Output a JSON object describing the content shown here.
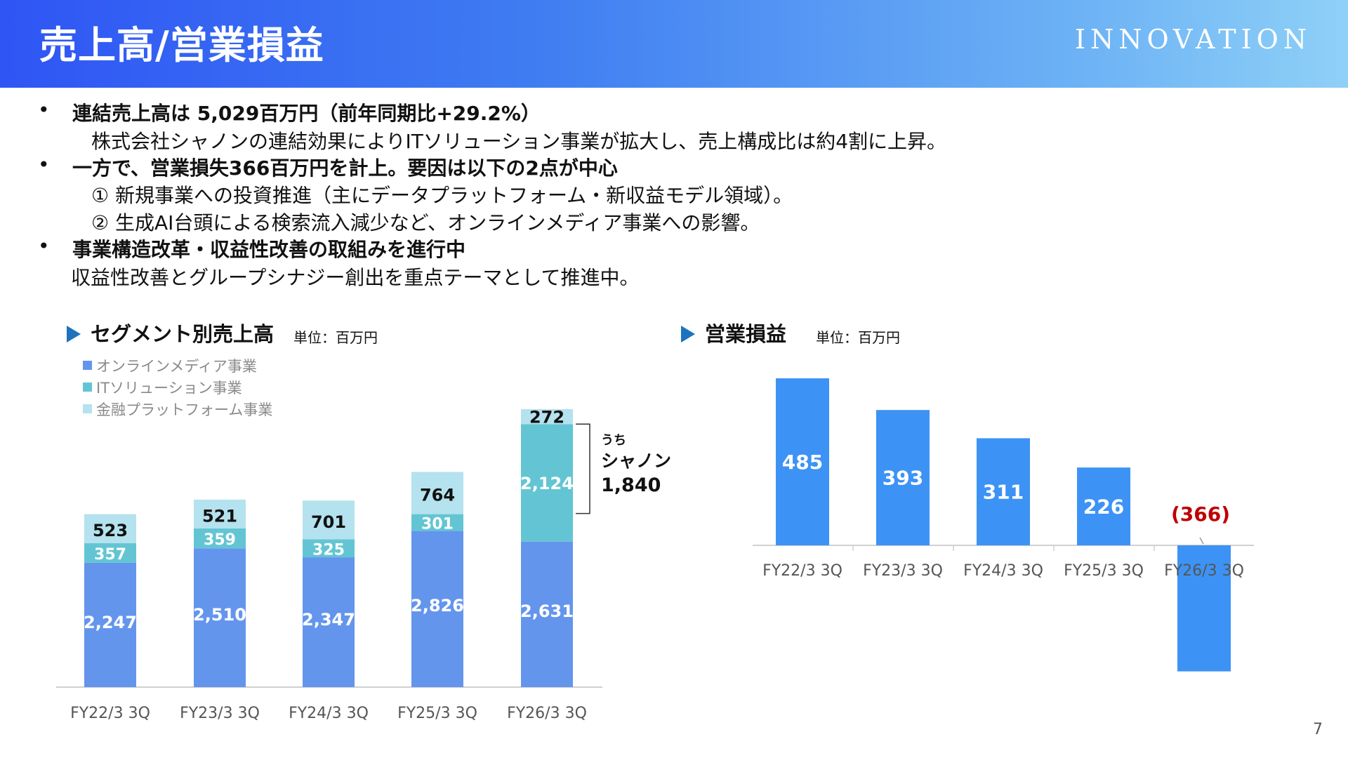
{
  "header": {
    "title": "売上高/営業損益",
    "logo": "INNOVATION"
  },
  "bullets": [
    {
      "text": "連結売上高は 5,029百万円（前年同期比+29.2%）",
      "bold": true,
      "bullet": true
    },
    {
      "text": "株式会社シャノンの連結効果によりITソリューション事業が拡大し、売上構成比は約4割に上昇。",
      "bold": false,
      "bullet": false,
      "indent": 1
    },
    {
      "text": "一方で、営業損失366百万円を計上。要因は以下の2点が中心",
      "bold": true,
      "bullet": true
    },
    {
      "text": "① 新規事業への投資推進（主にデータプラットフォーム・新収益モデル領域）。",
      "bold": false,
      "bullet": false,
      "indent": 1
    },
    {
      "text": "② 生成AI台頭による検索流入減少など、オンラインメディア事業への影響。",
      "bold": false,
      "bullet": false,
      "indent": 1
    },
    {
      "text": "事業構造改革・収益性改善の取組みを進行中",
      "bold": true,
      "bullet": true
    },
    {
      "text": "収益性改善とグループシナジー創出を重点テーマとして推進中。",
      "bold": false,
      "bullet": false,
      "indent": 0
    }
  ],
  "segment_chart": {
    "heading": "セグメント別売上高",
    "unit": "単位：百万円"
  },
  "op_chart": {
    "heading": "営業損益",
    "unit": "単位：百万円"
  },
  "page_number": "7",
  "colors": {
    "online": "#6495ed",
    "it": "#63c5d3",
    "finance": "#b4e2ee",
    "op_bar": "#3d93f5",
    "negative": "#c00000"
  },
  "chart_data": [
    {
      "type": "bar",
      "stacked": true,
      "categories": [
        "FY22/3 3Q",
        "FY23/3 3Q",
        "FY24/3 3Q",
        "FY25/3 3Q",
        "FY26/3 3Q"
      ],
      "series": [
        {
          "name": "オンラインメディア事業",
          "values": [
            2247,
            2510,
            2347,
            2826,
            2631
          ],
          "labels": [
            "2,247",
            "2,510",
            "2,347",
            "2,826",
            "2,631"
          ]
        },
        {
          "name": "ITソリューション事業",
          "values": [
            357,
            359,
            325,
            301,
            2124
          ],
          "labels": [
            "357",
            "359",
            "325",
            "301",
            "2,124"
          ]
        },
        {
          "name": "金融プラットフォーム事業",
          "values": [
            523,
            521,
            701,
            764,
            272
          ],
          "labels": [
            "523",
            "521",
            "701",
            "764",
            "272"
          ]
        }
      ],
      "annotation": {
        "line1": "うち",
        "line2": "シャノン",
        "line3": "1,840",
        "category": "FY26/3 3Q"
      },
      "legend": "top-left",
      "grid": false
    },
    {
      "type": "bar",
      "categories": [
        "FY22/3 3Q",
        "FY23/3 3Q",
        "FY24/3 3Q",
        "FY25/3 3Q",
        "FY26/3 3Q"
      ],
      "values": [
        485,
        393,
        311,
        226,
        -366
      ],
      "labels": [
        "485",
        "393",
        "311",
        "226",
        "(366)"
      ],
      "grid": false
    }
  ]
}
